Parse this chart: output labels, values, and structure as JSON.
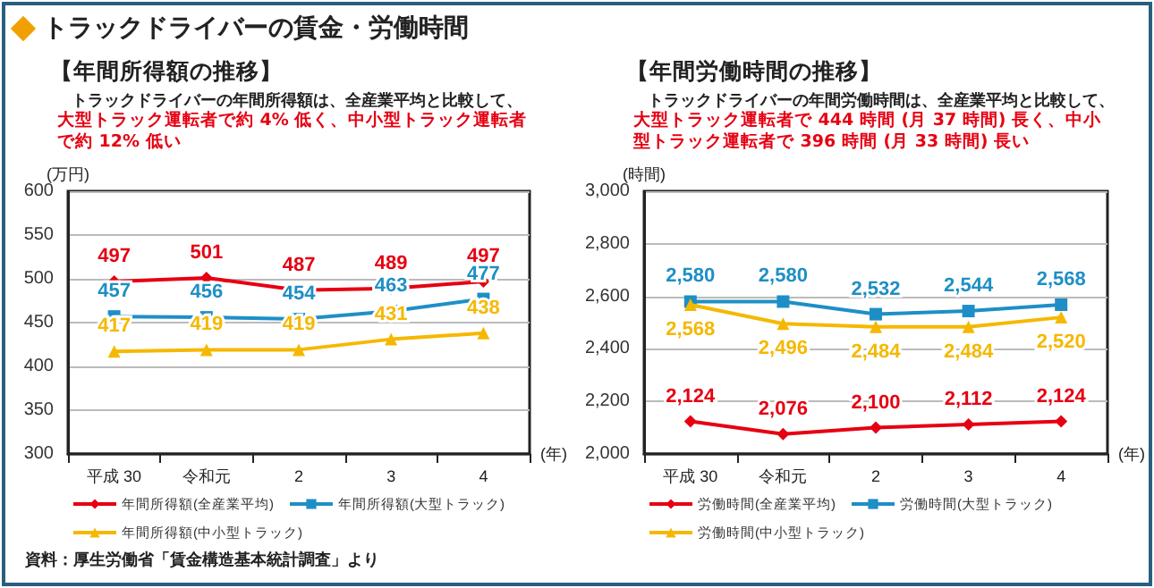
{
  "chart_data": [
    {
      "type": "line",
      "title": "【年間所得額の推移】",
      "subtitle": "トラックドライバーの年間所得額は、全産業平均と比較して、",
      "annotations": [
        "トラックドライバーの賃金・労働時間",
        "大型トラック運転者で約 4% 低く、中小型トラック運転者で約 12% 低い",
        "資料：厚生労働省「賃金構造基本統計調査」より"
      ],
      "xlabel": "(年)",
      "ylabel": "(万円)",
      "categories": [
        "平成 30",
        "令和元",
        "2",
        "3",
        "4"
      ],
      "series": [
        {
          "name": "年間所得額(全産業平均)",
          "color": "#e60012",
          "marker": "diamond",
          "values": [
            497,
            501,
            487,
            489,
            497
          ]
        },
        {
          "name": "年間所得額(大型トラック)",
          "color": "#1e8fc6",
          "marker": "square",
          "values": [
            457,
            456,
            454,
            463,
            477
          ]
        },
        {
          "name": "年間所得額(中小型トラック)",
          "color": "#f5b800",
          "marker": "triangle",
          "values": [
            417,
            419,
            419,
            431,
            438
          ]
        }
      ],
      "ylim": [
        300,
        600
      ],
      "yticks": [
        300,
        350,
        400,
        450,
        500,
        550,
        600
      ],
      "grid": "y",
      "legend": "bottom",
      "data_labels": true
    },
    {
      "type": "line",
      "title": "【年間労働時間の推移】",
      "subtitle": "トラックドライバーの年間労働時間は、全産業平均と比較して、",
      "annotations": [
        "大型トラック運転者で 444 時間 (月 37 時間) 長く、中小型トラック運転者で 396 時間 (月 33 時間) 長い"
      ],
      "xlabel": "(年)",
      "ylabel": "(時間)",
      "categories": [
        "平成 30",
        "令和元",
        "2",
        "3",
        "4"
      ],
      "series": [
        {
          "name": "労働時間(全産業平均)",
          "color": "#e60012",
          "marker": "diamond",
          "values": [
            2124,
            2076,
            2100,
            2112,
            2124
          ],
          "value_labels": [
            "2,124",
            "2,076",
            "2,100",
            "2,112",
            "2,124"
          ]
        },
        {
          "name": "労働時間(大型トラック)",
          "color": "#1e8fc6",
          "marker": "square",
          "values": [
            2580,
            2580,
            2532,
            2544,
            2568
          ],
          "value_labels": [
            "2,580",
            "2,580",
            "2,532",
            "2,544",
            "2,568"
          ]
        },
        {
          "name": "労働時間(中小型トラック)",
          "color": "#f5b800",
          "marker": "triangle",
          "values": [
            2568,
            2496,
            2484,
            2484,
            2520
          ],
          "value_labels": [
            "2,568",
            "2,496",
            "2,484",
            "2,484",
            "2,520"
          ]
        }
      ],
      "ylim": [
        2000,
        3000
      ],
      "yticks": [
        {
          "value": 2000,
          "label": "2,000"
        },
        {
          "value": 2200,
          "label": "2,200"
        },
        {
          "value": 2400,
          "label": "2,400"
        },
        {
          "value": 2600,
          "label": "2,600"
        },
        {
          "value": 2800,
          "label": "2,800"
        },
        {
          "value": 3000,
          "label": "3,000"
        }
      ],
      "grid": "y",
      "legend": "bottom"
    }
  ]
}
